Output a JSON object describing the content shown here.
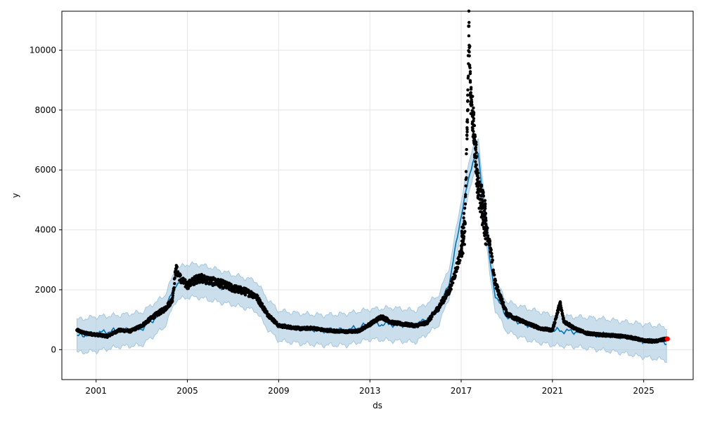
{
  "chart_data": {
    "type": "scatter",
    "title": "",
    "xlabel": "ds",
    "ylabel": "y",
    "xlim": [
      "1999-07-01",
      "2027-03-01"
    ],
    "ylim": [
      -1000,
      11300
    ],
    "x_ticks": [
      "2001",
      "2005",
      "2009",
      "2013",
      "2017",
      "2021",
      "2025"
    ],
    "y_ticks": [
      0,
      2000,
      4000,
      6000,
      8000,
      10000
    ],
    "grid": true,
    "legend": "none",
    "colors": {
      "points": "#000000",
      "forecast_line": "#0072b2",
      "uncertainty_band": "#a6c8e0",
      "highlight_point": "#ff0000",
      "grid": "#e5e5e5"
    },
    "series": [
      {
        "kind": "observed",
        "x": [
          "2000-03-01",
          "2000-07-01",
          "2001-01-01",
          "2001-07-01",
          "2002-01-01",
          "2002-07-01",
          "2003-01-01",
          "2003-07-01",
          "2004-01-01",
          "2004-03-01",
          "2004-05-01",
          "2004-07-01",
          "2004-10-01",
          "2005-01-01",
          "2005-07-01",
          "2006-01-01",
          "2006-07-01",
          "2007-01-01",
          "2007-07-01",
          "2008-01-01",
          "2008-07-01",
          "2009-01-01",
          "2009-07-01",
          "2010-01-01",
          "2010-07-01",
          "2011-01-01",
          "2011-07-01",
          "2012-01-01",
          "2012-07-01",
          "2013-01-01",
          "2013-07-01",
          "2014-01-01",
          "2014-07-01",
          "2015-01-01",
          "2015-07-01",
          "2016-01-01",
          "2016-07-01",
          "2016-10-01",
          "2017-01-01",
          "2017-03-01",
          "2017-04-15",
          "2017-05-01",
          "2017-06-01",
          "2017-07-01",
          "2017-08-01",
          "2017-10-01",
          "2018-01-01",
          "2018-04-01",
          "2018-07-01",
          "2019-01-01",
          "2019-07-01",
          "2020-01-01",
          "2020-07-01",
          "2021-01-01",
          "2021-05-01",
          "2021-07-01",
          "2022-01-01",
          "2022-07-01",
          "2023-01-01",
          "2023-07-01",
          "2024-01-01",
          "2024-07-01",
          "2025-01-01",
          "2025-07-01",
          "2026-01-01"
        ],
        "y": [
          650,
          550,
          500,
          450,
          650,
          620,
          800,
          1100,
          1350,
          1500,
          1650,
          2700,
          2300,
          2150,
          2400,
          2300,
          2200,
          2050,
          1950,
          1800,
          1200,
          800,
          750,
          700,
          720,
          650,
          620,
          600,
          620,
          850,
          1100,
          900,
          850,
          800,
          900,
          1400,
          2000,
          2600,
          3300,
          4200,
          8000,
          10800,
          8500,
          7800,
          7000,
          5500,
          4500,
          3500,
          2200,
          1200,
          1000,
          850,
          700,
          650,
          1550,
          950,
          700,
          550,
          500,
          480,
          450,
          400,
          300,
          280,
          360
        ]
      },
      {
        "kind": "forecast_mean",
        "x": [
          "2000-03-01",
          "2001-01-01",
          "2002-01-01",
          "2003-01-01",
          "2004-01-01",
          "2004-07-01",
          "2005-01-01",
          "2005-07-01",
          "2006-01-01",
          "2007-01-01",
          "2008-01-01",
          "2008-07-01",
          "2009-01-01",
          "2010-01-01",
          "2011-01-01",
          "2012-01-01",
          "2013-01-01",
          "2014-01-01",
          "2015-01-01",
          "2016-01-01",
          "2016-07-01",
          "2017-01-01",
          "2017-07-01",
          "2017-10-01",
          "2018-01-01",
          "2018-04-01",
          "2018-07-01",
          "2019-01-01",
          "2020-01-01",
          "2021-01-01",
          "2022-01-01",
          "2023-01-01",
          "2024-01-01",
          "2025-01-01",
          "2026-01-01"
        ],
        "y": [
          450,
          550,
          650,
          700,
          1300,
          2200,
          2300,
          2300,
          2200,
          2000,
          1800,
          1200,
          800,
          700,
          650,
          650,
          850,
          850,
          800,
          1300,
          2300,
          4500,
          6300,
          6500,
          4800,
          3000,
          1800,
          1100,
          800,
          650,
          600,
          500,
          450,
          300,
          250
        ]
      },
      {
        "kind": "uncertainty_upper",
        "x": [
          "2000-03-01",
          "2001-01-01",
          "2002-01-01",
          "2003-01-01",
          "2004-01-01",
          "2004-07-01",
          "2005-01-01",
          "2005-07-01",
          "2006-01-01",
          "2007-01-01",
          "2008-01-01",
          "2008-07-01",
          "2009-01-01",
          "2010-01-01",
          "2011-01-01",
          "2012-01-01",
          "2013-01-01",
          "2014-01-01",
          "2015-01-01",
          "2016-01-01",
          "2016-07-01",
          "2017-01-01",
          "2017-07-01",
          "2017-10-01",
          "2018-01-01",
          "2018-04-01",
          "2018-07-01",
          "2019-01-01",
          "2020-01-01",
          "2021-01-01",
          "2022-01-01",
          "2023-01-01",
          "2024-01-01",
          "2025-01-01",
          "2026-01-01"
        ],
        "y": [
          1000,
          1100,
          1150,
          1250,
          1800,
          2700,
          2850,
          2850,
          2750,
          2500,
          2300,
          1700,
          1300,
          1200,
          1150,
          1200,
          1350,
          1400,
          1300,
          1800,
          2800,
          5000,
          6800,
          7000,
          5300,
          3500,
          2300,
          1600,
          1350,
          1150,
          1100,
          1050,
          950,
          850,
          750
        ]
      },
      {
        "kind": "uncertainty_lower",
        "x": [
          "2000-03-01",
          "2001-01-01",
          "2002-01-01",
          "2003-01-01",
          "2004-01-01",
          "2004-07-01",
          "2005-01-01",
          "2005-07-01",
          "2006-01-01",
          "2007-01-01",
          "2008-01-01",
          "2008-07-01",
          "2009-01-01",
          "2010-01-01",
          "2011-01-01",
          "2012-01-01",
          "2013-01-01",
          "2014-01-01",
          "2015-01-01",
          "2016-01-01",
          "2016-07-01",
          "2017-01-01",
          "2017-07-01",
          "2017-10-01",
          "2018-01-01",
          "2018-04-01",
          "2018-07-01",
          "2019-01-01",
          "2020-01-01",
          "2021-01-01",
          "2022-01-01",
          "2023-01-01",
          "2024-01-01",
          "2025-01-01",
          "2026-01-01"
        ],
        "y": [
          -100,
          -50,
          100,
          150,
          750,
          1650,
          1750,
          1750,
          1650,
          1500,
          1300,
          700,
          300,
          200,
          150,
          150,
          350,
          300,
          250,
          800,
          1800,
          4000,
          5800,
          6000,
          4300,
          2500,
          1300,
          600,
          300,
          150,
          100,
          0,
          -100,
          -250,
          -350
        ]
      },
      {
        "kind": "highlight",
        "x": [
          "2026-01-15"
        ],
        "y": [
          360
        ]
      }
    ]
  }
}
